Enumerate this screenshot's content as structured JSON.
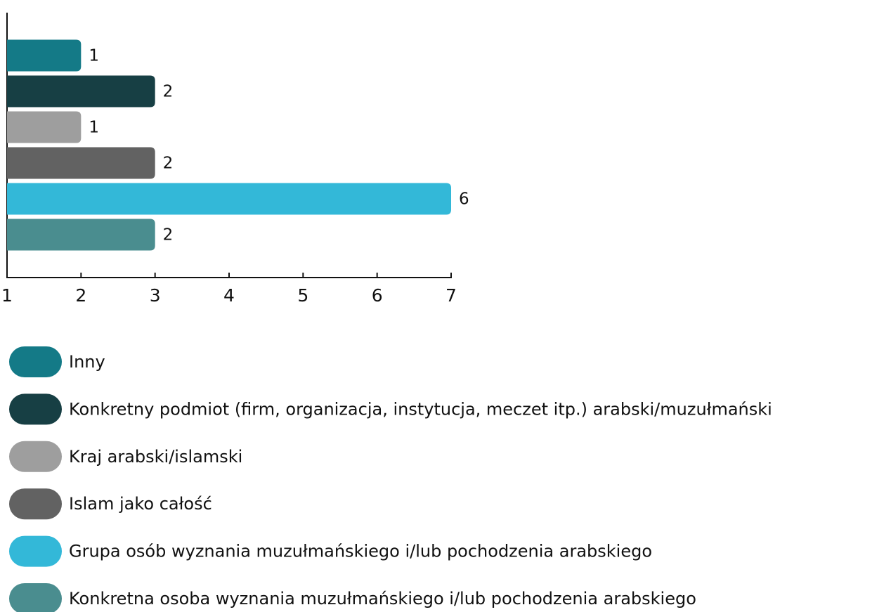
{
  "chart_data": {
    "type": "bar",
    "orientation": "horizontal",
    "categories": [
      "Inny",
      "Konkretny podmiot (firm, organizacja, instytucja, meczet itp.) arabski/muzułmański",
      "Kraj arabski/islamski",
      "Islam jako całość",
      "Grupa osób wyznania muzułmańskiego i/lub pochodzenia arabskiego",
      "Konkretna osoba wyznania muzułmańskiego i/lub pochodzenia arabskiego"
    ],
    "values": [
      1,
      2,
      1,
      2,
      6,
      2
    ],
    "colors": [
      "#147a87",
      "#173f44",
      "#9e9e9e",
      "#626262",
      "#33b8d8",
      "#4a8d8f"
    ],
    "xlim": [
      0,
      6
    ],
    "xticks": [
      {
        "value": 0,
        "label": "1"
      },
      {
        "value": 1,
        "label": "2"
      },
      {
        "value": 2,
        "label": "3"
      },
      {
        "value": 3,
        "label": "4"
      },
      {
        "value": 4,
        "label": "5"
      },
      {
        "value": 5,
        "label": "6"
      },
      {
        "value": 6,
        "label": "7"
      }
    ],
    "legend": "bottom"
  }
}
